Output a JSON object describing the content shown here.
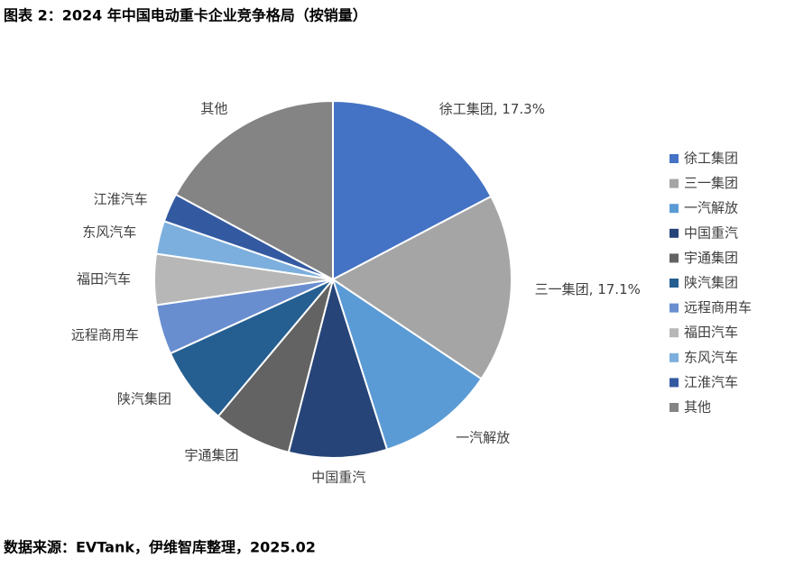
{
  "chart_data": {
    "type": "pie",
    "title": "图表 2：2024 年中国电动重卡企业竞争格局（按销量）",
    "source": "数据来源：EVTank，伊维智库整理，2025.02",
    "categories": [
      "徐工集团",
      "三一集团",
      "一汽解放",
      "中国重汽",
      "宇通集团",
      "陕汽集团",
      "远程商用车",
      "福田汽车",
      "东风汽车",
      "江淮汽车",
      "其他"
    ],
    "values": [
      17.3,
      17.1,
      10.7,
      8.9,
      7.1,
      7.1,
      4.5,
      4.6,
      3.0,
      2.6,
      17.1
    ],
    "value_labels": [
      "徐工集团, 17.3%",
      "三一集团, 17.1%",
      null,
      null,
      null,
      null,
      null,
      null,
      null,
      null,
      null
    ],
    "colors": [
      "#4472c4",
      "#a5a5a5",
      "#5b9bd5",
      "#264478",
      "#636363",
      "#255e91",
      "#698ed0",
      "#b7b7b7",
      "#7cafdd",
      "#335aa1",
      "#848484"
    ],
    "legend": "right"
  }
}
